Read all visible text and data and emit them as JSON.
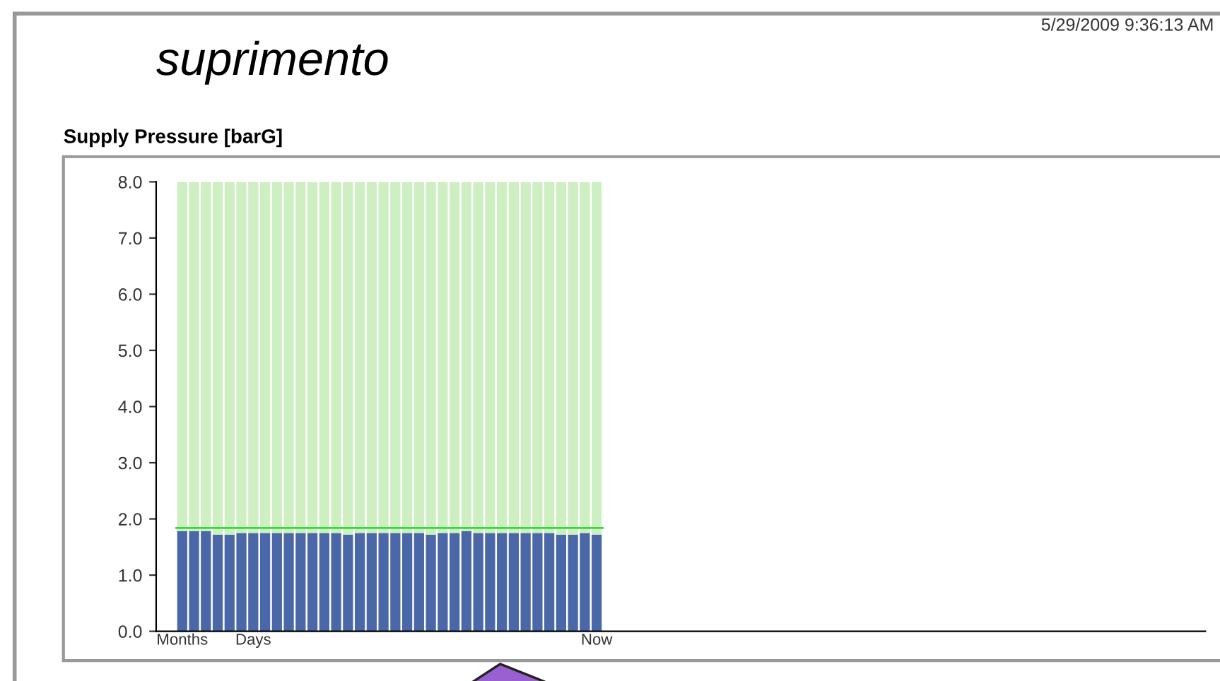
{
  "chart_data": {
    "type": "bar",
    "title": "Supply Pressure [barG]",
    "stacked": true,
    "categories": [
      "Months",
      null,
      null,
      null,
      null,
      null,
      "Days",
      null,
      null,
      null,
      null,
      null,
      null,
      null,
      null,
      null,
      null,
      null,
      null,
      null,
      null,
      null,
      null,
      null,
      null,
      null,
      null,
      null,
      null,
      null,
      null,
      null,
      null,
      null,
      null,
      "Now"
    ],
    "series": [
      {
        "color": "#4a68a8",
        "values": [
          1.78,
          1.78,
          1.78,
          1.72,
          1.72,
          1.75,
          1.75,
          1.75,
          1.75,
          1.75,
          1.75,
          1.75,
          1.75,
          1.75,
          1.72,
          1.75,
          1.75,
          1.75,
          1.75,
          1.75,
          1.75,
          1.72,
          1.75,
          1.75,
          1.78,
          1.75,
          1.75,
          1.75,
          1.75,
          1.75,
          1.75,
          1.75,
          1.72,
          1.72,
          1.75,
          1.72
        ]
      },
      {
        "color": "#cdefc2",
        "values": [
          6.22,
          6.22,
          6.22,
          6.28,
          6.28,
          6.25,
          6.25,
          6.25,
          6.25,
          6.25,
          6.25,
          6.25,
          6.25,
          6.25,
          6.28,
          6.25,
          6.25,
          6.25,
          6.25,
          6.25,
          6.25,
          6.28,
          6.25,
          6.25,
          6.22,
          6.25,
          6.25,
          6.25,
          6.25,
          6.25,
          6.25,
          6.25,
          6.28,
          6.28,
          6.25,
          6.28
        ]
      }
    ],
    "ylim": [
      0,
      8
    ],
    "yticks": [
      {
        "value": 0,
        "label": "0.0"
      },
      {
        "value": 1,
        "label": "1.0"
      },
      {
        "value": 2,
        "label": "2.0"
      },
      {
        "value": 3,
        "label": "3.0"
      },
      {
        "value": 4,
        "label": "4.0"
      },
      {
        "value": 5,
        "label": "5.0"
      },
      {
        "value": 6,
        "label": "6.0"
      },
      {
        "value": 7,
        "label": "7.0"
      },
      {
        "value": 8,
        "label": "8.0"
      }
    ],
    "ref_lines": [
      {
        "axis": "y",
        "value": 1.84,
        "color": "#33dd33"
      }
    ],
    "grid": false,
    "legend": false,
    "annotations": [
      "suprimento",
      "5/29/2009 9:36:13 AM"
    ]
  }
}
